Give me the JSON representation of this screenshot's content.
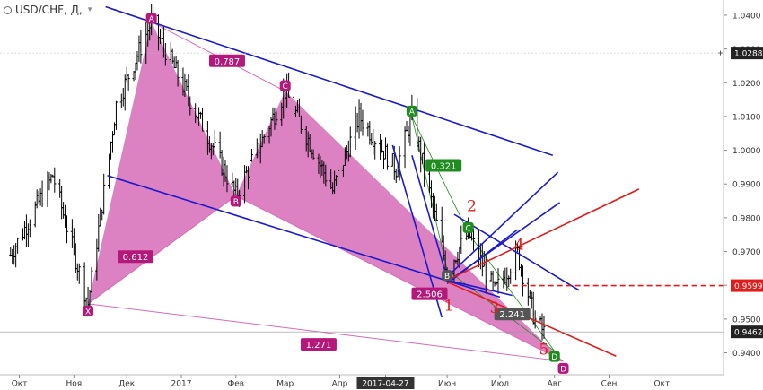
{
  "header": {
    "symbol": "USD/CHF, Д,",
    "dropdown_icon": "chevron-down-icon",
    "status_icon": "circle-icon"
  },
  "price_axis": {
    "ticks": [
      "1.0400",
      "1.0300",
      "1.0200",
      "1.0100",
      "1.0000",
      "0.9900",
      "0.9800",
      "0.9700",
      "0.9600",
      "0.9500",
      "0.9400"
    ],
    "ticks_values": [
      1.04,
      1.03,
      1.02,
      1.01,
      1.0,
      0.99,
      0.98,
      0.97,
      0.96,
      0.95,
      0.94
    ],
    "markers": [
      {
        "label": "1.0288",
        "value": 1.0288,
        "bg": "#222222",
        "color": "#ffffff"
      },
      {
        "label": "0.9599",
        "value": 0.9599,
        "bg": "#e31b1b",
        "color": "#ffffff"
      },
      {
        "label": "0.9462",
        "value": 0.9462,
        "bg": "#222222",
        "color": "#ffffff"
      }
    ],
    "plus_icon": "plus-icon"
  },
  "time_axis": {
    "labels": [
      "Окт",
      "Ноя",
      "Дек",
      "2017",
      "Фев",
      "Мар",
      "Апр",
      "2017-04-27",
      "Июн",
      "Июл",
      "Авг",
      "Сен",
      "Окт"
    ],
    "highlighted": "2017-04-27"
  },
  "chart_data": {
    "type": "ohlc",
    "instrument": "USD/CHF",
    "timeframe": "Д",
    "x_range": [
      "2016-09-20",
      "2017-11-05"
    ],
    "y_range": [
      0.9335,
      1.0445
    ],
    "price_anchors": [
      {
        "date": "2016-09-26",
        "price": 0.969
      },
      {
        "date": "2016-10-20",
        "price": 0.9925
      },
      {
        "date": "2016-11-09",
        "price": 0.9545
      },
      {
        "date": "2016-11-25",
        "price": 1.0135
      },
      {
        "date": "2016-12-15",
        "price": 1.038
      },
      {
        "date": "2017-01-20",
        "price": 1.0
      },
      {
        "date": "2017-02-01",
        "price": 0.9865
      },
      {
        "date": "2017-03-01",
        "price": 1.0175
      },
      {
        "date": "2017-03-28",
        "price": 0.988
      },
      {
        "date": "2017-04-12",
        "price": 1.01
      },
      {
        "date": "2017-05-03",
        "price": 0.9945
      },
      {
        "date": "2017-05-12",
        "price": 1.01
      },
      {
        "date": "2017-06-01",
        "price": 0.9645
      },
      {
        "date": "2017-06-13",
        "price": 0.9755
      },
      {
        "date": "2017-06-28",
        "price": 0.958
      },
      {
        "date": "2017-07-11",
        "price": 0.9695
      },
      {
        "date": "2017-07-21",
        "price": 0.9495
      },
      {
        "date": "2017-07-26",
        "price": 0.9462
      }
    ],
    "harmonic_pattern_1": {
      "points": [
        {
          "label": "X",
          "date": "2016-11-09",
          "price": 0.9545
        },
        {
          "label": "A",
          "date": "2016-12-15",
          "price": 1.038
        },
        {
          "label": "B",
          "date": "2017-02-01",
          "price": 0.9865
        },
        {
          "label": "C",
          "date": "2017-03-01",
          "price": 1.0175
        },
        {
          "label": "D",
          "date": "2017-08-06",
          "price": 0.9375
        }
      ],
      "ratios": [
        {
          "label": "0.787",
          "date": "2017-01-27",
          "price": 1.0265
        },
        {
          "label": "0.612",
          "date": "2016-12-06",
          "price": 0.9685
        },
        {
          "label": "2.506",
          "date": "2017-05-22",
          "price": 0.9575
        },
        {
          "label": "1.271",
          "date": "2017-03-20",
          "price": 0.9425
        }
      ]
    },
    "harmonic_pattern_2": {
      "points": [
        {
          "label": "A",
          "date": "2017-05-12",
          "price": 1.01
        },
        {
          "label": "B",
          "date": "2017-06-01",
          "price": 0.9645
        },
        {
          "label": "C",
          "date": "2017-06-13",
          "price": 0.9755
        },
        {
          "label": "D",
          "date": "2017-08-01",
          "price": 0.9405
        }
      ],
      "ratios": [
        {
          "label": "0.321",
          "date": "2017-05-30",
          "price": 0.9955
        },
        {
          "label": "2.241",
          "date": "2017-07-08",
          "price": 0.9515
        }
      ]
    },
    "wave_labels": [
      {
        "label": "1",
        "date": "2017-06-02",
        "price": 0.9525
      },
      {
        "label": "2",
        "date": "2017-06-15",
        "price": 0.982
      },
      {
        "label": "3",
        "date": "2017-06-28",
        "price": 0.9518
      },
      {
        "label": "4",
        "date": "2017-07-12",
        "price": 0.9705
      },
      {
        "label": "5",
        "date": "2017-07-26",
        "price": 0.9395
      }
    ],
    "trend_lines": [
      {
        "color": "#1a1acc",
        "from": [
          "2016-11-19",
          1.0425
        ],
        "to": [
          "2017-07-31",
          0.9985
        ]
      },
      {
        "color": "#1a1acc",
        "from": [
          "2016-11-20",
          0.9925
        ],
        "to": [
          "2017-07-01",
          0.9565
        ]
      },
      {
        "color": "#1a1acc",
        "from": [
          "2017-05-01",
          1.0015
        ],
        "to": [
          "2017-05-29",
          0.9505
        ]
      },
      {
        "color": "#1a1acc",
        "from": [
          "2017-05-12",
          0.9985
        ],
        "to": [
          "2017-06-01",
          0.962
        ]
      },
      {
        "color": "#1a1acc",
        "from": [
          "2017-06-01",
          0.9625
        ],
        "to": [
          "2017-08-03",
          0.9935
        ]
      },
      {
        "color": "#1a1acc",
        "from": [
          "2017-06-01",
          0.961
        ],
        "to": [
          "2017-08-04",
          0.9845
        ]
      },
      {
        "color": "#1a1acc",
        "from": [
          "2017-06-01",
          0.9605
        ],
        "to": [
          "2017-07-11",
          0.9765
        ]
      },
      {
        "color": "#1a1acc",
        "from": [
          "2017-06-05",
          0.981
        ],
        "to": [
          "2017-08-15",
          0.9585
        ]
      },
      {
        "color": "#1a1acc",
        "from": [
          "2017-06-01",
          0.9615
        ],
        "to": [
          "2017-07-08",
          0.957
        ]
      },
      {
        "color": "#e31b1b",
        "from": [
          "2017-06-01",
          0.9615
        ],
        "to": [
          "2017-09-18",
          0.9885
        ]
      },
      {
        "color": "#e31b1b",
        "from": [
          "2017-06-01",
          0.961
        ],
        "to": [
          "2017-09-05",
          0.939
        ]
      },
      {
        "color": "#e31b1b",
        "dashed": true,
        "from": [
          "2017-07-08",
          0.9599
        ],
        "to": [
          "2017-11-05",
          0.9599
        ]
      }
    ],
    "last_price": 0.9462,
    "last_price_line": true,
    "fill_color": "#d66bb7",
    "line_color_blue": "#1a1acc",
    "line_color_red": "#e31b1b",
    "green_label_color": "#1e8c1e",
    "pink_label_color": "#b5187b",
    "grid": false
  }
}
